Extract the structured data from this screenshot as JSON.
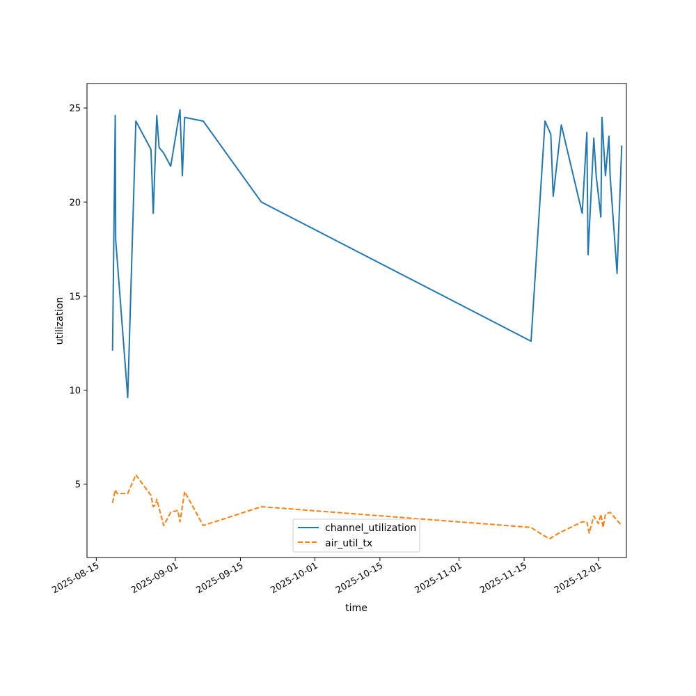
{
  "chart_data": {
    "type": "line",
    "xlabel": "time",
    "ylabel": "utilization",
    "xlim": [
      "2025-08-13",
      "2025-12-07"
    ],
    "ylim": [
      1.1,
      26.3
    ],
    "x_ticks": [
      "2025-08-15",
      "2025-09-01",
      "2025-09-15",
      "2025-10-01",
      "2025-10-15",
      "2025-11-01",
      "2025-11-15",
      "2025-12-01"
    ],
    "y_ticks": [
      5,
      10,
      15,
      20,
      25
    ],
    "grid": false,
    "legend_position": "lower center",
    "series": [
      {
        "name": "channel_utilization",
        "color": "#1f77b4",
        "dash": "solid",
        "points": [
          {
            "x": "2025-08-18T12:00",
            "y": 12.1
          },
          {
            "x": "2025-08-19T02:00",
            "y": 24.6
          },
          {
            "x": "2025-08-19T04:00",
            "y": 18.0
          },
          {
            "x": "2025-08-21T18:00",
            "y": 9.6
          },
          {
            "x": "2025-08-23T12:00",
            "y": 24.3
          },
          {
            "x": "2025-08-26T18:00",
            "y": 22.8
          },
          {
            "x": "2025-08-27T06:00",
            "y": 19.4
          },
          {
            "x": "2025-08-28T00:00",
            "y": 24.6
          },
          {
            "x": "2025-08-28T12:00",
            "y": 22.9
          },
          {
            "x": "2025-08-29T12:00",
            "y": 22.6
          },
          {
            "x": "2025-08-31T00:00",
            "y": 21.9
          },
          {
            "x": "2025-09-02T00:00",
            "y": 24.9
          },
          {
            "x": "2025-09-02T12:00",
            "y": 21.4
          },
          {
            "x": "2025-09-03T00:00",
            "y": 24.5
          },
          {
            "x": "2025-09-07T00:00",
            "y": 24.3
          },
          {
            "x": "2025-09-19T12:00",
            "y": 20.0
          },
          {
            "x": "2025-11-16T12:00",
            "y": 12.6
          },
          {
            "x": "2025-11-19T12:00",
            "y": 24.3
          },
          {
            "x": "2025-11-20T18:00",
            "y": 23.6
          },
          {
            "x": "2025-11-21T06:00",
            "y": 20.3
          },
          {
            "x": "2025-11-23T00:00",
            "y": 24.1
          },
          {
            "x": "2025-11-27T12:00",
            "y": 19.4
          },
          {
            "x": "2025-11-28T12:00",
            "y": 23.7
          },
          {
            "x": "2025-11-28T18:00",
            "y": 17.2
          },
          {
            "x": "2025-11-30T00:00",
            "y": 23.4
          },
          {
            "x": "2025-11-30T12:00",
            "y": 21.4
          },
          {
            "x": "2025-12-01T12:00",
            "y": 19.2
          },
          {
            "x": "2025-12-01T18:00",
            "y": 24.5
          },
          {
            "x": "2025-12-02T12:00",
            "y": 21.4
          },
          {
            "x": "2025-12-03T06:00",
            "y": 23.5
          },
          {
            "x": "2025-12-03T12:00",
            "y": 21.4
          },
          {
            "x": "2025-12-05T00:00",
            "y": 16.2
          },
          {
            "x": "2025-12-06T00:00",
            "y": 23.0
          }
        ]
      },
      {
        "name": "air_util_tx",
        "color": "#ff7f0e",
        "dash": "dashed",
        "points": [
          {
            "x": "2025-08-18T12:00",
            "y": 4.0
          },
          {
            "x": "2025-08-19T02:00",
            "y": 4.7
          },
          {
            "x": "2025-08-19T12:00",
            "y": 4.5
          },
          {
            "x": "2025-08-21T18:00",
            "y": 4.5
          },
          {
            "x": "2025-08-23T12:00",
            "y": 5.5
          },
          {
            "x": "2025-08-26T18:00",
            "y": 4.4
          },
          {
            "x": "2025-08-27T06:00",
            "y": 3.8
          },
          {
            "x": "2025-08-27T18:00",
            "y": 3.9
          },
          {
            "x": "2025-08-28T00:00",
            "y": 4.2
          },
          {
            "x": "2025-08-29T12:00",
            "y": 2.8
          },
          {
            "x": "2025-08-31T00:00",
            "y": 3.5
          },
          {
            "x": "2025-09-01T12:00",
            "y": 3.6
          },
          {
            "x": "2025-09-02T00:00",
            "y": 3.0
          },
          {
            "x": "2025-09-03T00:00",
            "y": 4.6
          },
          {
            "x": "2025-09-07T00:00",
            "y": 2.8
          },
          {
            "x": "2025-09-19T12:00",
            "y": 3.8
          },
          {
            "x": "2025-11-16T12:00",
            "y": 2.7
          },
          {
            "x": "2025-11-19T00:00",
            "y": 2.3
          },
          {
            "x": "2025-11-20T12:00",
            "y": 2.1
          },
          {
            "x": "2025-11-22T12:00",
            "y": 2.4
          },
          {
            "x": "2025-11-27T12:00",
            "y": 3.0
          },
          {
            "x": "2025-11-28T12:00",
            "y": 3.0
          },
          {
            "x": "2025-11-29T00:00",
            "y": 2.4
          },
          {
            "x": "2025-11-30T00:00",
            "y": 3.3
          },
          {
            "x": "2025-12-01T00:00",
            "y": 2.9
          },
          {
            "x": "2025-12-01T12:00",
            "y": 3.4
          },
          {
            "x": "2025-12-02T00:00",
            "y": 2.7
          },
          {
            "x": "2025-12-02T12:00",
            "y": 3.4
          },
          {
            "x": "2025-12-03T12:00",
            "y": 3.5
          },
          {
            "x": "2025-12-06T00:00",
            "y": 2.8
          }
        ]
      }
    ]
  }
}
